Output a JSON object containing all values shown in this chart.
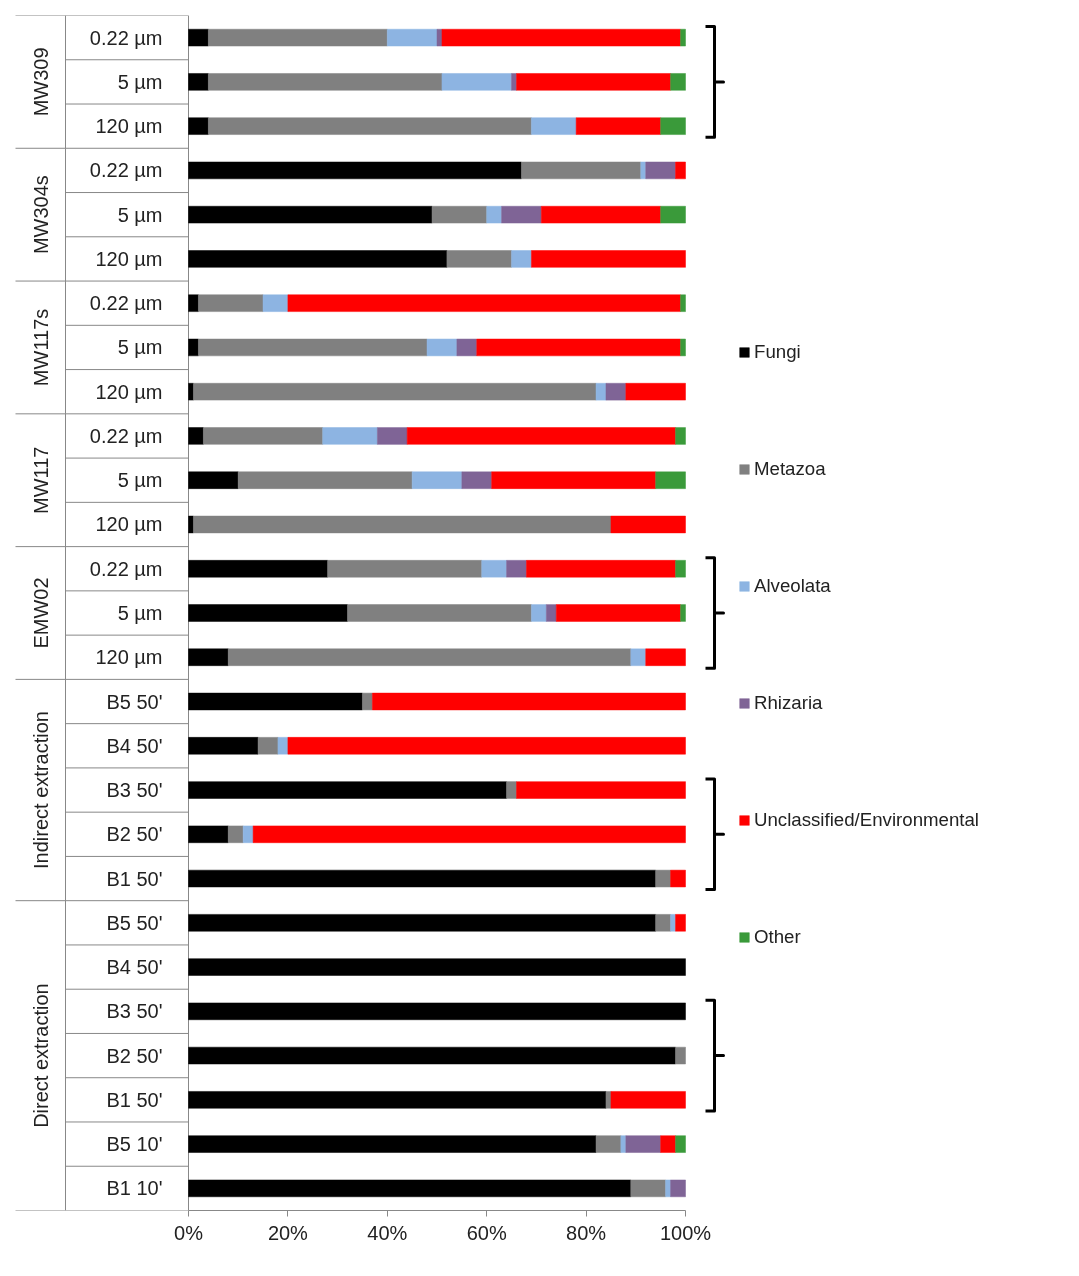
{
  "chart_data": {
    "type": "bar",
    "orientation": "horizontal",
    "stacked": true,
    "categories": [
      "0.22 µm",
      "5 µm",
      "120 µm",
      "0.22 µm",
      "5 µm",
      "120 µm",
      "0.22 µm",
      "5 µm",
      "120 µm",
      "0.22 µm",
      "5 µm",
      "120 µm",
      "0.22 µm",
      "5 µm",
      "120 µm",
      "B5 50'",
      "B4 50'",
      "B3 50'",
      "B2 50'",
      "B1 50'",
      "B5 50'",
      "B4 50'",
      "B3 50'",
      "B2 50'",
      "B1 50'",
      "B5 10'",
      "B1 10'"
    ],
    "series": [
      {
        "name": "Fungi",
        "color": "#000000",
        "values": [
          4,
          4,
          4,
          67,
          49,
          52,
          2,
          2,
          1,
          3,
          10,
          1,
          28,
          32,
          8,
          35,
          14,
          64,
          8,
          94,
          94,
          100,
          100,
          98,
          84,
          82,
          89
        ]
      },
      {
        "name": "Metazoa",
        "color": "#808080",
        "values": [
          36,
          47,
          65,
          24,
          11,
          13,
          13,
          46,
          81,
          24,
          35,
          84,
          31,
          37,
          81,
          2,
          4,
          2,
          3,
          3,
          3,
          null,
          null,
          2,
          1,
          5,
          7
        ]
      },
      {
        "name": "Alveolata",
        "color": "#8db4e2",
        "values": [
          10,
          14,
          9,
          1,
          3,
          4,
          5,
          6,
          2,
          11,
          10,
          null,
          5,
          3,
          3,
          null,
          2,
          null,
          2,
          null,
          1,
          null,
          null,
          null,
          null,
          1,
          1
        ]
      },
      {
        "name": "Rhizaria",
        "color": "#7f6496",
        "values": [
          1,
          1,
          null,
          6,
          8,
          null,
          null,
          4,
          4,
          6,
          6,
          null,
          4,
          2,
          null,
          null,
          null,
          null,
          null,
          null,
          null,
          null,
          null,
          null,
          null,
          7,
          3
        ]
      },
      {
        "name": "Unclassified/Environmental",
        "color": "#ff0000",
        "values": [
          48,
          31,
          17,
          2,
          24,
          31,
          79,
          41,
          12,
          54,
          33,
          15,
          30,
          25,
          8,
          63,
          80,
          34,
          87,
          3,
          2,
          null,
          null,
          null,
          15,
          3,
          null
        ]
      },
      {
        "name": "Other",
        "color": "#3a9a3a",
        "values": [
          1,
          3,
          5,
          null,
          5,
          null,
          1,
          1,
          null,
          2,
          6,
          null,
          2,
          1,
          null,
          null,
          null,
          null,
          null,
          null,
          null,
          null,
          null,
          null,
          null,
          2,
          null
        ]
      }
    ],
    "xlim": [
      0,
      100
    ],
    "xticks": [
      {
        "value": 0,
        "label": "0%"
      },
      {
        "value": 20,
        "label": "20%"
      },
      {
        "value": 40,
        "label": "40%"
      },
      {
        "value": 60,
        "label": "60%"
      },
      {
        "value": 80,
        "label": "80%"
      },
      {
        "value": 100,
        "label": "100%"
      }
    ],
    "grid": false,
    "legend": "right",
    "annotations": [
      "MW309",
      "MW304s",
      "MW117s",
      "MW117",
      "EMW02",
      "Indirect extraction",
      "Direct extraction"
    ]
  }
}
